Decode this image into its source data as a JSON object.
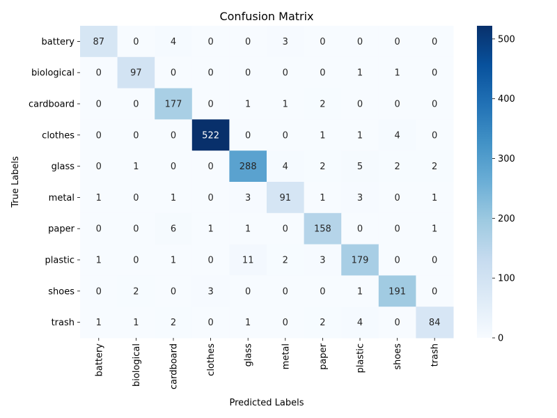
{
  "chart_data": {
    "type": "heatmap",
    "title": "Confusion Matrix",
    "xlabel": "Predicted Labels",
    "ylabel": "True Labels",
    "x_categories": [
      "battery",
      "biological",
      "cardboard",
      "clothes",
      "glass",
      "metal",
      "paper",
      "plastic",
      "shoes",
      "trash"
    ],
    "y_categories": [
      "battery",
      "biological",
      "cardboard",
      "clothes",
      "glass",
      "metal",
      "paper",
      "plastic",
      "shoes",
      "trash"
    ],
    "values": [
      [
        87,
        0,
        4,
        0,
        0,
        3,
        0,
        0,
        0,
        0
      ],
      [
        0,
        97,
        0,
        0,
        0,
        0,
        0,
        1,
        1,
        0
      ],
      [
        0,
        0,
        177,
        0,
        1,
        1,
        2,
        0,
        0,
        0
      ],
      [
        0,
        0,
        0,
        522,
        0,
        0,
        1,
        1,
        4,
        0
      ],
      [
        0,
        1,
        0,
        0,
        288,
        4,
        2,
        5,
        2,
        2
      ],
      [
        1,
        0,
        1,
        0,
        3,
        91,
        1,
        3,
        0,
        1
      ],
      [
        0,
        0,
        6,
        1,
        1,
        0,
        158,
        0,
        0,
        1
      ],
      [
        1,
        0,
        1,
        0,
        11,
        2,
        3,
        179,
        0,
        0
      ],
      [
        0,
        2,
        0,
        3,
        0,
        0,
        0,
        1,
        191,
        0
      ],
      [
        1,
        1,
        2,
        0,
        1,
        0,
        2,
        4,
        0,
        84
      ]
    ],
    "colorbar": {
      "min": 0,
      "max": 522,
      "ticks": [
        0,
        100,
        200,
        300,
        400,
        500
      ],
      "colormap": "Blues"
    },
    "colormap_stops": [
      "#f7fbff",
      "#deebf7",
      "#c6dbef",
      "#9ecae1",
      "#6baed6",
      "#4292c6",
      "#2171b5",
      "#08519c",
      "#08306b"
    ]
  }
}
